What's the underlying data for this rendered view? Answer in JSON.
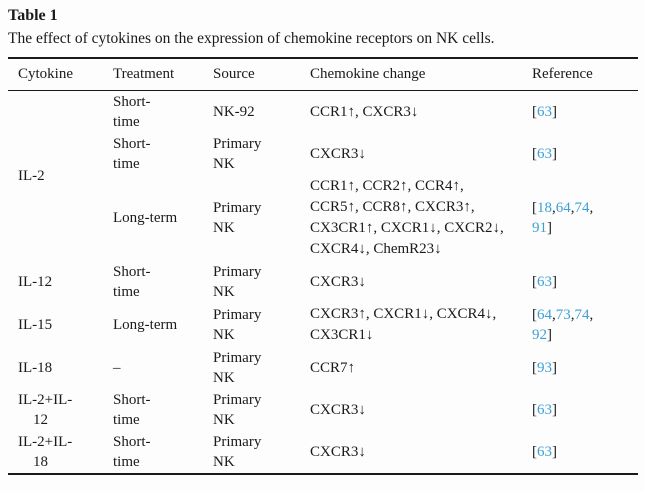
{
  "table": {
    "label": "Table 1",
    "caption": "The effect of cytokines on the expression of chemokine receptors on NK cells.",
    "columns": [
      "Cytokine",
      "Treatment",
      "Source",
      "Chemokine change",
      "Reference"
    ],
    "colors": {
      "citation_blue": "#3d9fd6",
      "text": "#1a1a1a"
    },
    "rows": [
      {
        "cytokine": "IL-2",
        "cytokine_rowspan": 3,
        "treatment": "Short-\ntime",
        "source": "NK-92",
        "change": "CCR1↑, CXCR3↓",
        "reference_lines": [
          [
            "63"
          ]
        ]
      },
      {
        "treatment": "Short-\ntime",
        "source": "Primary\nNK",
        "change": "CXCR3↓",
        "reference_lines": [
          [
            "63"
          ]
        ]
      },
      {
        "treatment": "Long-term",
        "source": "Primary\nNK",
        "change": "CCR1↑, CCR2↑, CCR4↑,\nCCR5↑, CCR8↑, CXCR3↑,\nCX3CR1↑, CXCR1↓, CXCR2↓,\nCXCR4↓, ChemR23↓",
        "reference_lines": [
          [
            "18",
            "64",
            "74"
          ],
          [
            "91"
          ]
        ]
      },
      {
        "cytokine": "IL-12",
        "treatment": "Short-\ntime",
        "source": "Primary\nNK",
        "change": "CXCR3↓",
        "reference_lines": [
          [
            "63"
          ]
        ]
      },
      {
        "cytokine": "IL-15",
        "treatment": "Long-term",
        "source": "Primary\nNK",
        "change": "CXCR3↑, CXCR1↓, CXCR4↓,\nCX3CR1↓",
        "reference_lines": [
          [
            "64",
            "73",
            "74"
          ],
          [
            "92"
          ]
        ]
      },
      {
        "cytokine": "IL-18",
        "treatment": "–",
        "source": "Primary\nNK",
        "change": "CCR7↑",
        "reference_lines": [
          [
            "93"
          ]
        ]
      },
      {
        "cytokine": "IL-2+IL-\n12",
        "treatment": "Short-\ntime",
        "source": "Primary\nNK",
        "change": "CXCR3↓",
        "reference_lines": [
          [
            "63"
          ]
        ]
      },
      {
        "cytokine": "IL-2+IL-\n18",
        "treatment": "Short-\ntime",
        "source": "Primary\nNK",
        "change": "CXCR3↓",
        "reference_lines": [
          [
            "63"
          ]
        ]
      }
    ]
  }
}
